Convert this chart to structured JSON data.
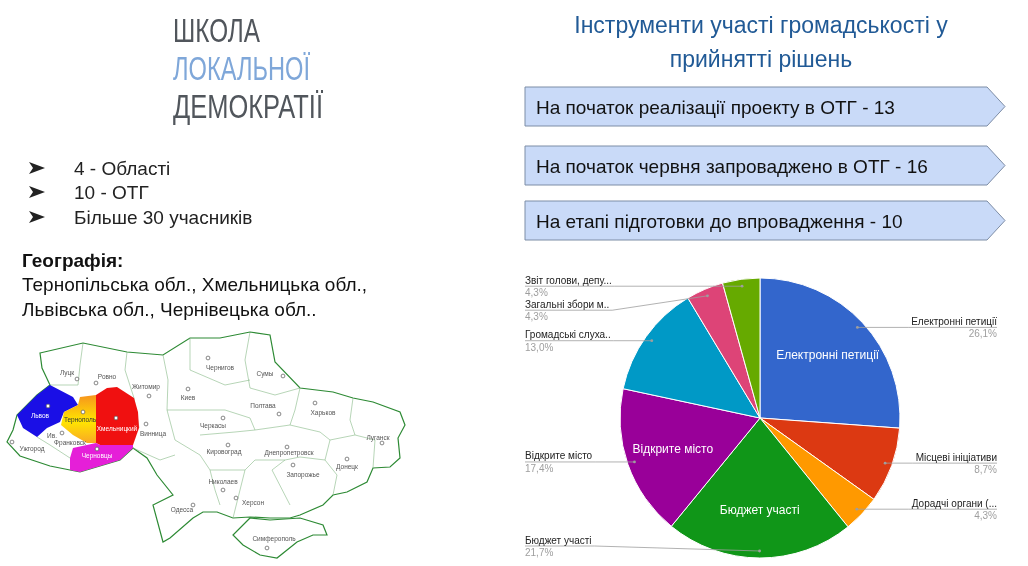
{
  "chart_data": {
    "type": "pie",
    "title": "Інструменти участі громадськості у прийнятті рішень",
    "categories": [
      "Електронні петиції",
      "Місцеві ініціативи",
      "Дорадчі органи (...",
      "Бюджет участі",
      "Відкрите місто",
      "Громадські слуха..",
      "Загальні збори м..",
      "Звіт голови, депу..."
    ],
    "values": [
      26.1,
      8.7,
      4.3,
      21.7,
      17.4,
      13.0,
      4.3,
      4.3
    ],
    "colors": [
      "#3366cc",
      "#dc3912",
      "#ff9900",
      "#109618",
      "#990099",
      "#0099c6",
      "#dd4477",
      "#66aa00"
    ],
    "value_labels": [
      "26,1%",
      "8,7%",
      "4,3%",
      "21,7%",
      "17,4%",
      "13,0%",
      "4,3%",
      "4,3%"
    ],
    "annotations": [
      "ШКОЛА",
      "ЛОКАЛЬНОЇ",
      "ДЕМОКРАТІЇ",
      "4 - Області",
      "10 - ОТГ",
      "Більше 30 учасників",
      "Географія:",
      "Тернопільська обл., Хмельницька обл., Львівська обл., Чернівецька обл..",
      "На початок реалізації проекту в ОТГ - 13",
      "На початок червня запроваджено в ОТГ - 16",
      "На етапі підготовки до впровадження - 10",
      "Луцк",
      "Ровно",
      "Житомир",
      "Киев",
      "Чернигов",
      "Сумы",
      "Полтава",
      "Харьков",
      "Луганск",
      "Донецк",
      "Запорожье",
      "Днепропетровск",
      "Кировоград",
      "Черкасы",
      "Винница",
      "Николаев",
      "Херсон",
      "Одесса",
      "Симферополь",
      "Ужгород",
      "Ив. Франковск",
      "Львов",
      "Тернополь",
      "Хмельницкий",
      "Черновцы"
    ]
  }
}
